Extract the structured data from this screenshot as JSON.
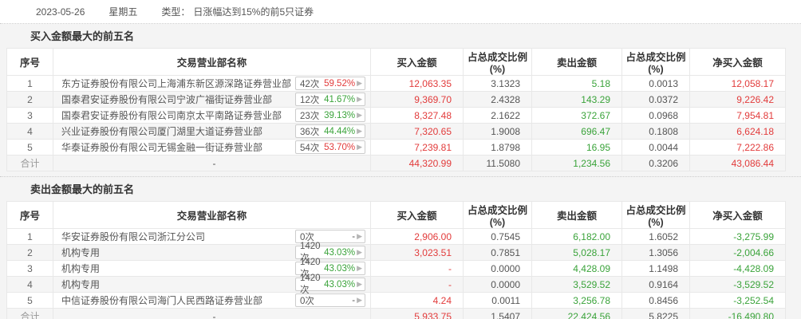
{
  "topbar": {
    "date": "2023-05-26",
    "weekday": "星期五",
    "type_label": "类型：",
    "type_value": "日涨幅达到15%的前5只证券"
  },
  "columns": {
    "seq": "序号",
    "name": "交易营业部名称",
    "buy": "买入金额",
    "buy_pct": "占总成交比例(%)",
    "sell": "卖出金额",
    "sell_pct": "占总成交比例(%)",
    "net": "净买入金额"
  },
  "colors": {
    "red": "#e23b3b",
    "green": "#3aa33a"
  },
  "icons": {
    "badge_arrow": "chevron-right-icon"
  },
  "buy_section": {
    "title": "买入金额最大的前五名",
    "rows": [
      {
        "seq": "1",
        "name": "东方证券股份有限公司上海浦东新区源深路证券营业部",
        "times": "42次",
        "rate": "59.52%",
        "rate_color": "red",
        "buy": "12,063.35",
        "buy_pct": "3.1323",
        "sell": "5.18",
        "sell_pct": "0.0013",
        "net": "12,058.17",
        "net_color": "red"
      },
      {
        "seq": "2",
        "name": "国泰君安证券股份有限公司宁波广福街证券营业部",
        "times": "12次",
        "rate": "41.67%",
        "rate_color": "green",
        "buy": "9,369.70",
        "buy_pct": "2.4328",
        "sell": "143.29",
        "sell_pct": "0.0372",
        "net": "9,226.42",
        "net_color": "red"
      },
      {
        "seq": "3",
        "name": "国泰君安证券股份有限公司南京太平南路证券营业部",
        "times": "23次",
        "rate": "39.13%",
        "rate_color": "green",
        "buy": "8,327.48",
        "buy_pct": "2.1622",
        "sell": "372.67",
        "sell_pct": "0.0968",
        "net": "7,954.81",
        "net_color": "red"
      },
      {
        "seq": "4",
        "name": "兴业证券股份有限公司厦门湖里大道证券营业部",
        "times": "36次",
        "rate": "44.44%",
        "rate_color": "green",
        "buy": "7,320.65",
        "buy_pct": "1.9008",
        "sell": "696.47",
        "sell_pct": "0.1808",
        "net": "6,624.18",
        "net_color": "red"
      },
      {
        "seq": "5",
        "name": "华泰证券股份有限公司无锡金融一街证券营业部",
        "times": "54次",
        "rate": "53.70%",
        "rate_color": "red",
        "buy": "7,239.81",
        "buy_pct": "1.8798",
        "sell": "16.95",
        "sell_pct": "0.0044",
        "net": "7,222.86",
        "net_color": "red"
      }
    ],
    "total": {
      "seq": "合计",
      "name": "-",
      "buy": "44,320.99",
      "buy_pct": "11.5080",
      "sell": "1,234.56",
      "sell_pct": "0.3206",
      "net": "43,086.44",
      "net_color": "red"
    }
  },
  "sell_section": {
    "title": "卖出金额最大的前五名",
    "rows": [
      {
        "seq": "1",
        "name": "华安证券股份有限公司浙江分公司",
        "times": "0次",
        "rate": "-",
        "rate_color": "dark",
        "buy": "2,906.00",
        "buy_pct": "0.7545",
        "sell": "6,182.00",
        "sell_pct": "1.6052",
        "net": "-3,275.99",
        "net_color": "green"
      },
      {
        "seq": "2",
        "name": "机构专用",
        "times": "1420次",
        "rate": "43.03%",
        "rate_color": "green",
        "buy": "3,023.51",
        "buy_pct": "0.7851",
        "sell": "5,028.17",
        "sell_pct": "1.3056",
        "net": "-2,004.66",
        "net_color": "green"
      },
      {
        "seq": "3",
        "name": "机构专用",
        "times": "1420次",
        "rate": "43.03%",
        "rate_color": "green",
        "buy": "-",
        "buy_pct": "0.0000",
        "sell": "4,428.09",
        "sell_pct": "1.1498",
        "net": "-4,428.09",
        "net_color": "green"
      },
      {
        "seq": "4",
        "name": "机构专用",
        "times": "1420次",
        "rate": "43.03%",
        "rate_color": "green",
        "buy": "-",
        "buy_pct": "0.0000",
        "sell": "3,529.52",
        "sell_pct": "0.9164",
        "net": "-3,529.52",
        "net_color": "green"
      },
      {
        "seq": "5",
        "name": "中信证券股份有限公司海门人民西路证券营业部",
        "times": "0次",
        "rate": "-",
        "rate_color": "dark",
        "buy": "4.24",
        "buy_pct": "0.0011",
        "sell": "3,256.78",
        "sell_pct": "0.8456",
        "net": "-3,252.54",
        "net_color": "green"
      }
    ],
    "total": {
      "seq": "合计",
      "name": "-",
      "buy": "5,933.75",
      "buy_pct": "1.5407",
      "sell": "22,424.56",
      "sell_pct": "5.8225",
      "net": "-16,490.80",
      "net_color": "green"
    }
  }
}
